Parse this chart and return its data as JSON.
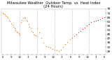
{
  "title": "Milwaukee Weather  Outdoor Temp  vs  Heat Index\n(24 Hours)",
  "title_fontsize": 3.8,
  "bg_color": "#ffffff",
  "plot_bg": "#ffffff",
  "text_color": "#000000",
  "grid_color": "#aaaaaa",
  "temp_color": "#ff0000",
  "heat_color": "#ff8800",
  "ylim": [
    24,
    78
  ],
  "yticks": [
    28,
    33,
    38,
    43,
    48,
    53,
    58,
    63,
    68,
    73,
    78
  ],
  "ytick_labels": [
    "28",
    "33",
    "38",
    "43",
    "48",
    "53",
    "58",
    "63",
    "68",
    "73",
    "78"
  ],
  "ytick_fontsize": 3.0,
  "xtick_fontsize": 2.8,
  "x_labels": [
    "6",
    "",
    "9",
    "",
    "12",
    "",
    "3",
    "",
    "6",
    "",
    "9",
    "",
    "12",
    "",
    "3",
    "",
    "6",
    "",
    "9",
    "",
    "12",
    "",
    "3",
    "",
    "6"
  ],
  "temp_x": [
    0,
    0.5,
    1,
    1.5,
    2,
    2.5,
    3,
    3.5,
    4,
    4.5,
    5,
    5.5,
    6,
    6.5,
    7,
    7.5,
    8,
    8.5,
    9,
    9.5,
    10,
    10.5,
    11,
    11.5,
    12,
    12.5,
    13,
    13.5,
    14,
    14.5,
    15,
    15.5,
    16,
    17,
    18,
    19,
    20,
    21,
    22,
    23,
    24,
    25,
    26,
    27,
    28,
    29,
    30,
    31,
    32,
    33,
    34,
    35,
    36,
    37,
    38,
    39,
    40,
    41,
    42,
    43,
    44,
    45,
    46,
    47
  ],
  "temp_y": [
    73,
    72,
    71,
    70,
    69,
    67,
    65,
    63,
    61,
    59,
    57,
    55,
    53,
    51,
    50,
    49,
    48,
    62,
    65,
    67,
    68,
    67,
    65,
    63,
    60,
    57,
    55,
    52,
    50,
    48,
    47,
    46,
    55,
    50,
    44,
    38,
    34,
    33,
    32,
    31,
    30,
    29,
    28,
    30,
    33,
    36,
    39,
    42,
    44,
    46,
    48,
    50,
    52,
    54,
    56,
    58,
    60,
    62,
    63,
    64,
    65,
    66,
    67,
    68
  ],
  "heat_x": [
    0,
    0.5,
    1,
    1.5,
    2,
    2.5,
    3,
    3.5,
    4,
    4.5,
    5,
    5.5,
    6,
    6.5,
    7,
    7.5,
    8,
    8.5,
    9,
    9.5,
    10,
    10.5,
    11,
    11.5,
    12,
    12.5,
    13,
    13.5,
    14,
    14.5,
    15,
    15.5,
    16,
    17,
    18,
    19,
    20,
    21,
    22,
    23,
    24,
    25,
    26,
    27,
    28,
    29,
    30,
    31,
    32,
    33
  ],
  "heat_y": [
    73,
    72,
    71,
    70,
    69,
    67,
    65,
    63,
    61,
    59,
    57,
    55,
    53,
    51,
    50,
    49,
    48,
    62,
    65,
    67,
    68,
    67,
    65,
    63,
    60,
    57,
    55,
    52,
    50,
    48,
    47,
    46,
    55,
    50,
    44,
    38,
    34,
    33,
    32,
    31,
    30,
    29,
    28,
    30,
    33,
    36,
    39,
    42,
    44,
    46
  ],
  "vline_positions": [
    8,
    16,
    24,
    32,
    40
  ],
  "vline_color": "#999999",
  "marker_size": 0.7,
  "n_points": 64
}
